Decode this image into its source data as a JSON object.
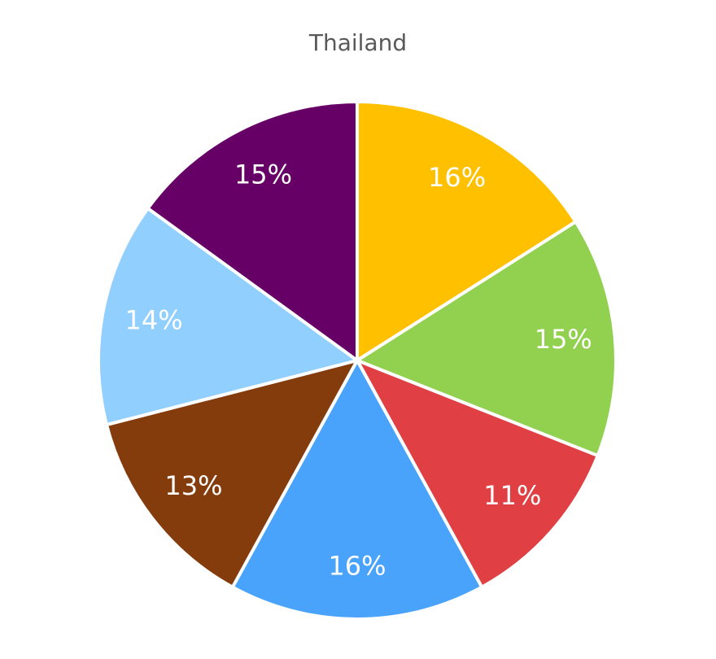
{
  "chart_data": {
    "type": "pie",
    "title": "Thailand",
    "values": [
      16,
      15,
      11,
      16,
      13,
      14,
      15
    ],
    "value_labels": [
      "16%",
      "15%",
      "11%",
      "16%",
      "13%",
      "14%",
      "15%"
    ],
    "colors": [
      "#ffc000",
      "#92d050",
      "#e04044",
      "#4aa3fb",
      "#843c0c",
      "#91cfff",
      "#660066"
    ]
  }
}
